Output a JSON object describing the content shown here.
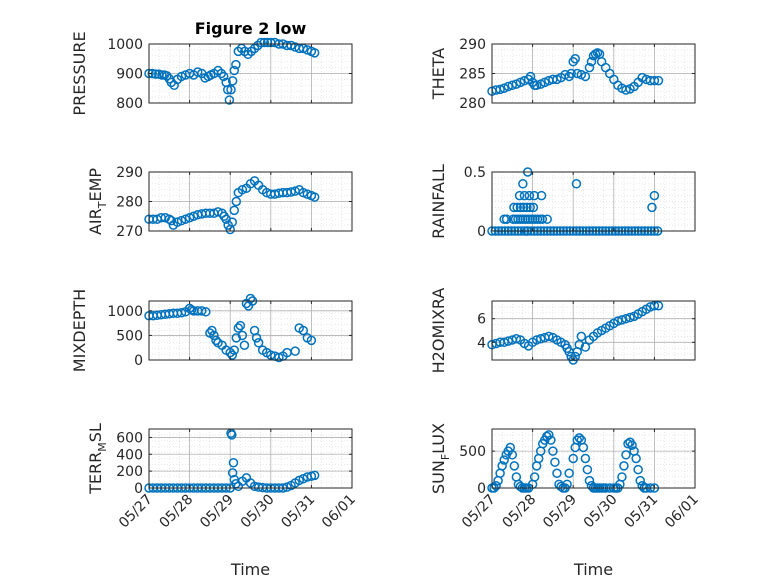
{
  "figure": {
    "title": "Figure 2 low",
    "marker_color": "#0072BD",
    "marker": "open-circle"
  },
  "chart_data": [
    {
      "id": "pressure",
      "type": "scatter",
      "title": "Figure 2 low",
      "ylabel": "PRESSURE",
      "ylabel_sub": "",
      "ylim": [
        800,
        1000
      ],
      "yticks": [
        800,
        900,
        1000
      ],
      "xlim": [
        0,
        5
      ],
      "xticks": [
        0,
        1,
        2,
        3,
        4,
        5
      ],
      "xticklabels": [
        "05/27",
        "05/28",
        "05/29",
        "05/30",
        "05/31",
        "06/01"
      ],
      "show_xticklabels": false,
      "xlabel": "",
      "grid": true,
      "x": [
        0.0,
        0.08,
        0.16,
        0.24,
        0.32,
        0.38,
        0.44,
        0.5,
        0.55,
        0.62,
        0.7,
        0.8,
        0.9,
        1.0,
        1.1,
        1.2,
        1.3,
        1.38,
        1.46,
        1.52,
        1.6,
        1.7,
        1.78,
        1.84,
        1.9,
        1.94,
        1.98,
        2.02,
        2.06,
        2.1,
        2.14,
        2.2,
        2.28,
        2.36,
        2.44,
        2.52,
        2.6,
        2.68,
        2.76,
        2.84,
        2.92,
        3.0,
        3.1,
        3.2,
        3.3,
        3.4,
        3.5,
        3.6,
        3.7,
        3.8,
        3.9,
        4.0,
        4.08
      ],
      "y": [
        900,
        900,
        898,
        898,
        895,
        895,
        892,
        882,
        870,
        860,
        880,
        890,
        895,
        900,
        895,
        905,
        900,
        885,
        890,
        895,
        900,
        910,
        900,
        890,
        870,
        845,
        810,
        845,
        875,
        910,
        930,
        975,
        985,
        975,
        965,
        975,
        985,
        995,
        1005,
        1005,
        1005,
        1005,
        1005,
        1000,
        1000,
        995,
        995,
        990,
        985,
        985,
        980,
        975,
        970
      ]
    },
    {
      "id": "theta",
      "type": "scatter",
      "title": "",
      "ylabel": "THETA",
      "ylabel_sub": "",
      "ylim": [
        280,
        290
      ],
      "yticks": [
        280,
        285,
        290
      ],
      "xlim": [
        0,
        5
      ],
      "xticks": [
        0,
        1,
        2,
        3,
        4,
        5
      ],
      "xticklabels": [
        "05/27",
        "05/28",
        "05/29",
        "05/30",
        "05/31",
        "06/01"
      ],
      "show_xticklabels": false,
      "xlabel": "",
      "grid": true,
      "x": [
        0.0,
        0.1,
        0.2,
        0.3,
        0.4,
        0.5,
        0.6,
        0.7,
        0.8,
        0.9,
        0.95,
        1.0,
        1.05,
        1.1,
        1.2,
        1.3,
        1.4,
        1.5,
        1.6,
        1.7,
        1.8,
        1.9,
        1.95,
        2.0,
        2.05,
        2.1,
        2.2,
        2.3,
        2.4,
        2.45,
        2.5,
        2.55,
        2.6,
        2.65,
        2.7,
        2.8,
        2.9,
        3.0,
        3.1,
        3.2,
        3.3,
        3.4,
        3.5,
        3.6,
        3.7,
        3.8,
        3.9,
        4.0,
        4.1
      ],
      "y": [
        282,
        282.2,
        282.3,
        282.5,
        282.8,
        283,
        283.2,
        283.5,
        283.8,
        284,
        284.5,
        283.5,
        283,
        283,
        283.2,
        283.5,
        283.8,
        284,
        284,
        284.3,
        284.8,
        284.5,
        285,
        287,
        287.5,
        285,
        284.8,
        284.5,
        286,
        287,
        288,
        288.3,
        288.5,
        288.3,
        287,
        286,
        285,
        284,
        283,
        282.5,
        282.2,
        282.4,
        282.8,
        283.5,
        284.3,
        284,
        283.8,
        283.8,
        283.8
      ]
    },
    {
      "id": "air-temp",
      "type": "scatter",
      "title": "",
      "ylabel": "AIR",
      "ylabel_sub": "T",
      "ylabel_tail": "EMP",
      "ylim": [
        270,
        290
      ],
      "yticks": [
        270,
        280,
        290
      ],
      "xlim": [
        0,
        5
      ],
      "xticks": [
        0,
        1,
        2,
        3,
        4,
        5
      ],
      "xticklabels": [
        "05/27",
        "05/28",
        "05/29",
        "05/30",
        "05/31",
        "06/01"
      ],
      "show_xticklabels": false,
      "xlabel": "",
      "grid": true,
      "x": [
        0.0,
        0.1,
        0.2,
        0.3,
        0.4,
        0.5,
        0.55,
        0.6,
        0.7,
        0.8,
        0.9,
        1.0,
        1.1,
        1.2,
        1.3,
        1.4,
        1.5,
        1.6,
        1.7,
        1.8,
        1.85,
        1.9,
        1.95,
        2.0,
        2.05,
        2.1,
        2.15,
        2.2,
        2.3,
        2.4,
        2.5,
        2.6,
        2.7,
        2.8,
        2.9,
        3.0,
        3.1,
        3.2,
        3.3,
        3.4,
        3.5,
        3.6,
        3.7,
        3.8,
        3.9,
        4.0,
        4.08
      ],
      "y": [
        274,
        274,
        274,
        274.5,
        274.5,
        274,
        273.5,
        272,
        273,
        273.5,
        274,
        274.5,
        275,
        275.5,
        275.8,
        276,
        276,
        276,
        276.5,
        276,
        275,
        274,
        272,
        270.5,
        273,
        277,
        280,
        283,
        284,
        284.5,
        286,
        287,
        285.5,
        284,
        283,
        282.5,
        282.5,
        282.8,
        283,
        283,
        283.2,
        283.5,
        284,
        283,
        282.5,
        282,
        281.5
      ]
    },
    {
      "id": "rainfall",
      "type": "scatter",
      "title": "",
      "ylabel": "RAINFALL",
      "ylabel_sub": "",
      "ylim": [
        0,
        0.5
      ],
      "yticks": [
        0,
        0.5
      ],
      "xlim": [
        0,
        5
      ],
      "xticks": [
        0,
        1,
        2,
        3,
        4,
        5
      ],
      "xticklabels": [
        "05/27",
        "05/28",
        "05/29",
        "05/30",
        "05/31",
        "06/01"
      ],
      "show_xticklabels": false,
      "xlabel": "",
      "grid": true,
      "x": [
        0.0,
        0.08,
        0.16,
        0.24,
        0.32,
        0.4,
        0.48,
        0.56,
        0.64,
        0.72,
        0.8,
        0.88,
        0.96,
        1.04,
        1.12,
        1.2,
        1.28,
        1.36,
        1.44,
        1.52,
        1.6,
        1.68,
        1.76,
        1.84,
        1.92,
        2.0,
        2.08,
        2.16,
        2.24,
        2.32,
        2.4,
        2.48,
        2.56,
        2.64,
        2.72,
        2.8,
        2.88,
        2.96,
        3.04,
        3.12,
        3.2,
        3.28,
        3.36,
        3.44,
        3.52,
        3.6,
        3.68,
        3.76,
        3.84,
        3.92,
        4.0,
        4.08,
        0.3,
        0.36,
        0.52,
        0.58,
        0.64,
        0.7,
        0.76,
        0.82,
        0.88,
        0.94,
        1.0,
        1.06,
        1.12,
        1.18,
        1.24,
        1.36,
        0.54,
        0.62,
        0.7,
        0.78,
        0.86,
        0.94,
        1.02,
        0.68,
        0.8,
        0.92,
        0.76,
        0.88,
        0.86,
        1.04,
        1.22,
        2.08,
        3.94,
        4.0
      ],
      "y": [
        0,
        0,
        0,
        0,
        0,
        0,
        0,
        0,
        0,
        0,
        0,
        0,
        0,
        0,
        0,
        0,
        0,
        0,
        0,
        0,
        0,
        0,
        0,
        0,
        0,
        0,
        0,
        0,
        0,
        0,
        0,
        0,
        0,
        0,
        0,
        0,
        0,
        0,
        0,
        0,
        0,
        0,
        0,
        0,
        0,
        0,
        0,
        0,
        0,
        0,
        0,
        0,
        0.1,
        0.1,
        0.1,
        0.1,
        0.1,
        0.1,
        0.1,
        0.1,
        0.1,
        0.1,
        0.1,
        0.1,
        0.1,
        0.1,
        0.1,
        0.1,
        0.2,
        0.2,
        0.2,
        0.2,
        0.2,
        0.2,
        0.2,
        0.3,
        0.3,
        0.3,
        0.4,
        0.5,
        0,
        0.3,
        0.3,
        0.4,
        0.2,
        0.3
      ]
    },
    {
      "id": "mixdepth",
      "type": "scatter",
      "title": "",
      "ylabel": "MIXDEPTH",
      "ylabel_sub": "",
      "ylim": [
        0,
        1200
      ],
      "yticks": [
        0,
        500,
        1000
      ],
      "xlim": [
        0,
        5
      ],
      "xticks": [
        0,
        1,
        2,
        3,
        4,
        5
      ],
      "xticklabels": [
        "05/27",
        "05/28",
        "05/29",
        "05/30",
        "05/31",
        "06/01"
      ],
      "show_xticklabels": false,
      "xlabel": "",
      "grid": true,
      "x": [
        0.0,
        0.1,
        0.2,
        0.3,
        0.4,
        0.5,
        0.6,
        0.7,
        0.8,
        0.9,
        1.0,
        1.05,
        1.1,
        1.2,
        1.3,
        1.4,
        1.5,
        1.55,
        1.6,
        1.65,
        1.7,
        1.8,
        1.9,
        2.0,
        2.05,
        2.1,
        2.15,
        2.2,
        2.25,
        2.3,
        2.35,
        2.4,
        2.45,
        2.5,
        2.55,
        2.6,
        2.65,
        2.7,
        2.8,
        2.9,
        3.0,
        3.1,
        3.2,
        3.3,
        3.4,
        3.6,
        3.7,
        3.8,
        3.9,
        4.0
      ],
      "y": [
        900,
        900,
        910,
        920,
        930,
        940,
        950,
        950,
        960,
        980,
        1050,
        1020,
        1000,
        1000,
        1000,
        980,
        550,
        600,
        500,
        400,
        350,
        300,
        200,
        150,
        100,
        200,
        450,
        650,
        700,
        500,
        300,
        1150,
        1100,
        1250,
        1200,
        600,
        450,
        350,
        200,
        150,
        100,
        80,
        50,
        80,
        150,
        180,
        650,
        600,
        450,
        400
      ]
    },
    {
      "id": "h2omixra",
      "type": "scatter",
      "title": "",
      "ylabel": "H2OMIXRA",
      "ylabel_sub": "",
      "ylim": [
        2.5,
        7.5
      ],
      "yticks": [
        4,
        6
      ],
      "xlim": [
        0,
        5
      ],
      "xticks": [
        0,
        1,
        2,
        3,
        4,
        5
      ],
      "xticklabels": [
        "05/27",
        "05/28",
        "05/29",
        "05/30",
        "05/31",
        "06/01"
      ],
      "show_xticklabels": false,
      "xlabel": "",
      "grid": true,
      "x": [
        0.0,
        0.1,
        0.2,
        0.3,
        0.4,
        0.5,
        0.6,
        0.7,
        0.8,
        0.9,
        1.0,
        1.1,
        1.2,
        1.3,
        1.4,
        1.5,
        1.6,
        1.7,
        1.8,
        1.85,
        1.9,
        1.95,
        2.0,
        2.05,
        2.1,
        2.15,
        2.2,
        2.3,
        2.4,
        2.5,
        2.6,
        2.7,
        2.8,
        2.9,
        3.0,
        3.1,
        3.2,
        3.3,
        3.4,
        3.5,
        3.6,
        3.7,
        3.8,
        3.9,
        4.0,
        4.1
      ],
      "y": [
        3.8,
        3.9,
        4.0,
        4.0,
        4.1,
        4.2,
        4.3,
        4.2,
        3.9,
        3.7,
        4.0,
        4.2,
        4.3,
        4.4,
        4.5,
        4.4,
        4.2,
        4.0,
        3.8,
        3.5,
        3.2,
        2.8,
        2.5,
        2.8,
        3.2,
        3.8,
        4.5,
        3.6,
        4.2,
        4.5,
        4.8,
        5.0,
        5.2,
        5.4,
        5.6,
        5.8,
        5.9,
        6.0,
        6.1,
        6.2,
        6.4,
        6.6,
        6.8,
        7.0,
        7.1,
        7.1
      ]
    },
    {
      "id": "terr-msl",
      "type": "scatter",
      "title": "",
      "ylabel": "TERR",
      "ylabel_sub": "M",
      "ylabel_tail": "SL",
      "ylim": [
        0,
        700
      ],
      "yticks": [
        0,
        200,
        400,
        600
      ],
      "xlim": [
        0,
        5
      ],
      "xticks": [
        0,
        1,
        2,
        3,
        4,
        5
      ],
      "xticklabels": [
        "05/27",
        "05/28",
        "05/29",
        "05/30",
        "05/31",
        "06/01"
      ],
      "show_xticklabels": true,
      "xlabel": "Time",
      "grid": true,
      "x": [
        0.0,
        0.1,
        0.2,
        0.3,
        0.4,
        0.5,
        0.6,
        0.7,
        0.8,
        0.9,
        1.0,
        1.1,
        1.2,
        1.3,
        1.4,
        1.5,
        1.6,
        1.7,
        1.8,
        1.9,
        2.0,
        2.02,
        2.04,
        2.06,
        2.08,
        2.1,
        2.14,
        2.2,
        2.3,
        2.4,
        2.5,
        2.6,
        2.7,
        2.8,
        2.9,
        3.0,
        3.1,
        3.2,
        3.3,
        3.4,
        3.5,
        3.6,
        3.7,
        3.8,
        3.9,
        4.0,
        4.08
      ],
      "y": [
        0,
        0,
        0,
        0,
        0,
        0,
        0,
        0,
        0,
        0,
        0,
        0,
        0,
        0,
        0,
        0,
        0,
        0,
        0,
        0,
        0,
        650,
        630,
        180,
        300,
        100,
        50,
        20,
        80,
        120,
        60,
        20,
        10,
        5,
        0,
        0,
        0,
        0,
        0,
        10,
        30,
        60,
        90,
        110,
        130,
        140,
        150
      ]
    },
    {
      "id": "sun-flux",
      "type": "scatter",
      "title": "",
      "ylabel": "SUN",
      "ylabel_sub": "F",
      "ylabel_tail": "LUX",
      "ylim": [
        0,
        800
      ],
      "yticks": [
        0,
        500
      ],
      "xlim": [
        0,
        5
      ],
      "xticks": [
        0,
        1,
        2,
        3,
        4,
        5
      ],
      "xticklabels": [
        "05/27",
        "05/28",
        "05/29",
        "05/30",
        "05/31",
        "06/01"
      ],
      "show_xticklabels": true,
      "xlabel": "Time",
      "grid": true,
      "x": [
        0.0,
        0.05,
        0.1,
        0.15,
        0.2,
        0.25,
        0.3,
        0.35,
        0.4,
        0.45,
        0.5,
        0.55,
        0.6,
        0.65,
        0.7,
        0.75,
        0.8,
        0.85,
        0.9,
        1.0,
        1.05,
        1.1,
        1.15,
        1.2,
        1.25,
        1.3,
        1.35,
        1.4,
        1.45,
        1.5,
        1.55,
        1.6,
        1.65,
        1.7,
        1.75,
        1.8,
        1.85,
        1.9,
        2.0,
        2.05,
        2.1,
        2.15,
        2.2,
        2.25,
        2.3,
        2.35,
        2.4,
        2.45,
        2.5,
        2.55,
        2.6,
        2.65,
        2.7,
        2.75,
        2.8,
        2.9,
        3.0,
        3.05,
        3.1,
        3.15,
        3.2,
        3.25,
        3.3,
        3.35,
        3.4,
        3.45,
        3.5,
        3.55,
        3.6,
        3.65,
        3.7,
        3.75,
        3.8,
        3.9,
        4.0
      ],
      "y": [
        0,
        0,
        30,
        100,
        200,
        300,
        380,
        450,
        500,
        550,
        450,
        300,
        150,
        50,
        20,
        0,
        0,
        0,
        0,
        50,
        150,
        300,
        400,
        500,
        600,
        650,
        700,
        720,
        650,
        500,
        350,
        200,
        50,
        20,
        0,
        0,
        50,
        200,
        400,
        550,
        650,
        680,
        650,
        550,
        400,
        250,
        100,
        30,
        0,
        0,
        0,
        0,
        0,
        0,
        0,
        0,
        0,
        0,
        0,
        50,
        150,
        300,
        450,
        600,
        620,
        580,
        500,
        400,
        250,
        100,
        30,
        0,
        0,
        0,
        0
      ]
    }
  ]
}
